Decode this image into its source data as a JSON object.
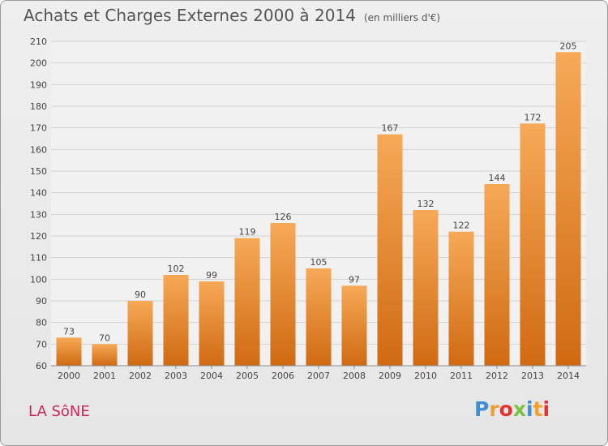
{
  "header": {
    "title": "Achats et Charges Externes 2000 à 2014",
    "unit": "(en milliers d'€)"
  },
  "footer": {
    "place": "LA SôNE",
    "logo": [
      "P",
      "r",
      "o",
      "x",
      "i",
      "t",
      "i"
    ],
    "logo_colors": [
      "#3d8fd6",
      "#f0a030",
      "#e83030",
      "#7cc242",
      "#3d8fd6",
      "#f0a030",
      "#e83030"
    ]
  },
  "chart_data": {
    "type": "bar",
    "title": "Achats et Charges Externes 2000 à 2014",
    "subtitle": "(en milliers d'€)",
    "categories": [
      "2000",
      "2001",
      "2002",
      "2003",
      "2004",
      "2005",
      "2006",
      "2007",
      "2008",
      "2009",
      "2010",
      "2011",
      "2012",
      "2013",
      "2014"
    ],
    "values": [
      73,
      70,
      90,
      102,
      99,
      119,
      126,
      105,
      97,
      167,
      132,
      122,
      144,
      172,
      205
    ],
    "ylim": [
      60,
      210
    ],
    "yticks": [
      60,
      70,
      80,
      90,
      100,
      110,
      120,
      130,
      140,
      150,
      160,
      170,
      180,
      190,
      200,
      210
    ],
    "grid": true,
    "bar_color_top": "#f7a957",
    "bar_color_bottom": "#d06a12"
  }
}
